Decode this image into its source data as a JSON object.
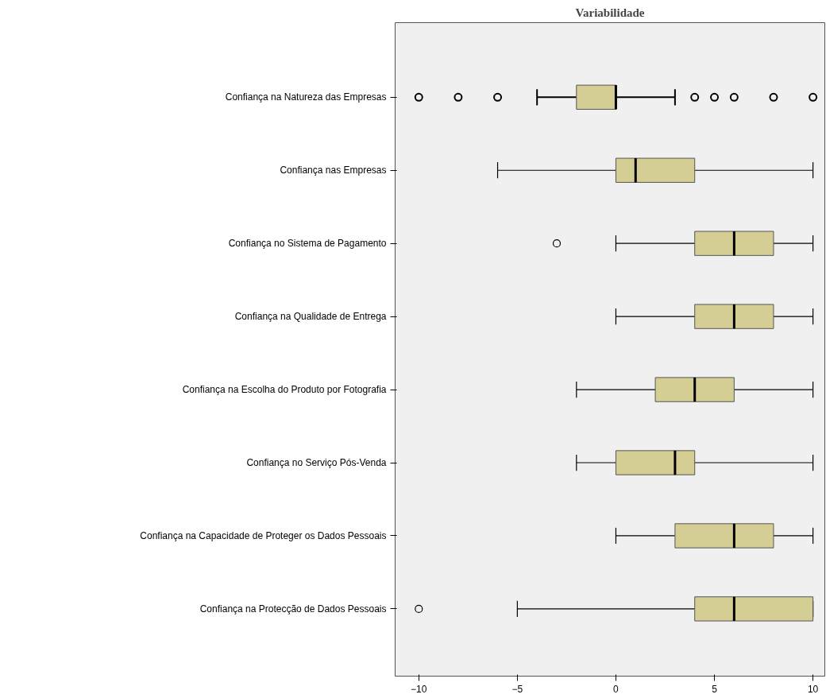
{
  "chart_data": {
    "type": "box",
    "title": "Variabilidade",
    "orientation": "horizontal",
    "categories": [
      "Confiança na Natureza das Empresas",
      "Confiança nas Empresas",
      "Confiança no Sistema de Pagamento",
      "Confiança na Qualidade de Entrega",
      "Confiança na Escolha do Produto por Fotografia",
      "Confiança no Serviço Pós-Venda",
      "Confiança na Capacidade de Proteger os Dados Pessoais",
      "Confiança na Protecção de Dados Pessoais"
    ],
    "boxes": [
      {
        "low": -4,
        "q1": -2,
        "median": 0,
        "q3": 0,
        "high": 3,
        "outliers": [
          -10,
          -8,
          -6,
          4,
          5,
          6,
          8,
          10
        ]
      },
      {
        "low": -6,
        "q1": 0,
        "median": 1,
        "q3": 4,
        "high": 10
      },
      {
        "low": 0,
        "q1": 4,
        "median": 6,
        "q3": 8,
        "high": 10,
        "outliers": [
          -3
        ]
      },
      {
        "low": 0,
        "q1": 4,
        "median": 6,
        "q3": 8,
        "high": 10
      },
      {
        "low": -2,
        "q1": 2,
        "median": 4,
        "q3": 6,
        "high": 10
      },
      {
        "low": -2,
        "q1": 0,
        "median": 3,
        "q3": 4,
        "high": 10
      },
      {
        "low": 0,
        "q1": 3,
        "median": 6,
        "q3": 8,
        "high": 10
      },
      {
        "low": -5,
        "q1": 4,
        "median": 6,
        "q3": 10,
        "high": 10,
        "outliers": [
          -10
        ]
      }
    ],
    "color": "#d4ce95",
    "xlim": [
      -11.2,
      10.6
    ],
    "xticks": [
      -10,
      -5,
      0,
      5,
      10
    ],
    "grid": false
  }
}
